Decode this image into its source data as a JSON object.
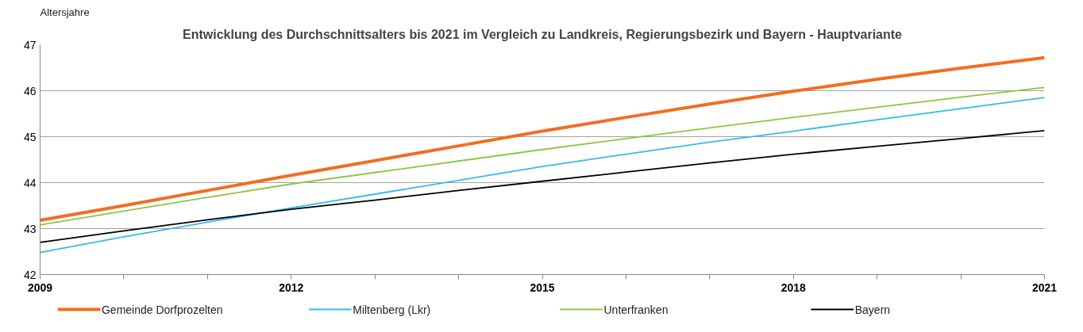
{
  "chart_data": {
    "type": "line",
    "title": "Entwicklung des Durchschnittsalters bis 2021 im Vergleich zu Landkreis, Regierungsbezirk und Bayern - Hauptvariante",
    "ylabel": "Altersjahre",
    "x": [
      2009,
      2010,
      2011,
      2012,
      2013,
      2014,
      2015,
      2016,
      2017,
      2018,
      2019,
      2020,
      2021
    ],
    "series": [
      {
        "name": "Gemeinde Dorfprozelten",
        "color": "#f26d21",
        "values": [
          43.18,
          43.5,
          43.83,
          44.16,
          44.48,
          44.8,
          45.12,
          45.42,
          45.71,
          45.99,
          46.25,
          46.49,
          46.72
        ]
      },
      {
        "name": "Miltenberg (Lkr)",
        "color": "#33bbee",
        "values": [
          42.48,
          42.82,
          43.14,
          43.45,
          43.75,
          44.05,
          44.35,
          44.62,
          44.88,
          45.12,
          45.37,
          45.61,
          45.85
        ]
      },
      {
        "name": "Unterfranken",
        "color": "#8dc63f",
        "values": [
          43.08,
          43.38,
          43.68,
          43.97,
          44.22,
          44.47,
          44.72,
          44.96,
          45.19,
          45.42,
          45.64,
          45.86,
          46.07
        ]
      },
      {
        "name": "Bayern",
        "color": "#000000",
        "values": [
          42.7,
          42.95,
          43.19,
          43.42,
          43.62,
          43.83,
          44.03,
          44.23,
          44.43,
          44.62,
          44.79,
          44.96,
          45.13
        ]
      }
    ],
    "xlim": [
      2009,
      2021
    ],
    "xticks": [
      2009,
      {
        "value": 2010,
        "label": null
      },
      {
        "value": 2011,
        "label": null
      },
      2012,
      {
        "value": 2013,
        "label": null
      },
      {
        "value": 2014,
        "label": null
      },
      2015,
      {
        "value": 2016,
        "label": null
      },
      {
        "value": 2017,
        "label": null
      },
      2018,
      {
        "value": 2019,
        "label": null
      },
      {
        "value": 2020,
        "label": null
      },
      2021
    ],
    "ylim": [
      42,
      47
    ],
    "yticks": [
      42,
      43,
      44,
      45,
      46,
      47
    ],
    "grid": "y",
    "legend": "bottom",
    "marker": "none",
    "line_style": "solid"
  }
}
